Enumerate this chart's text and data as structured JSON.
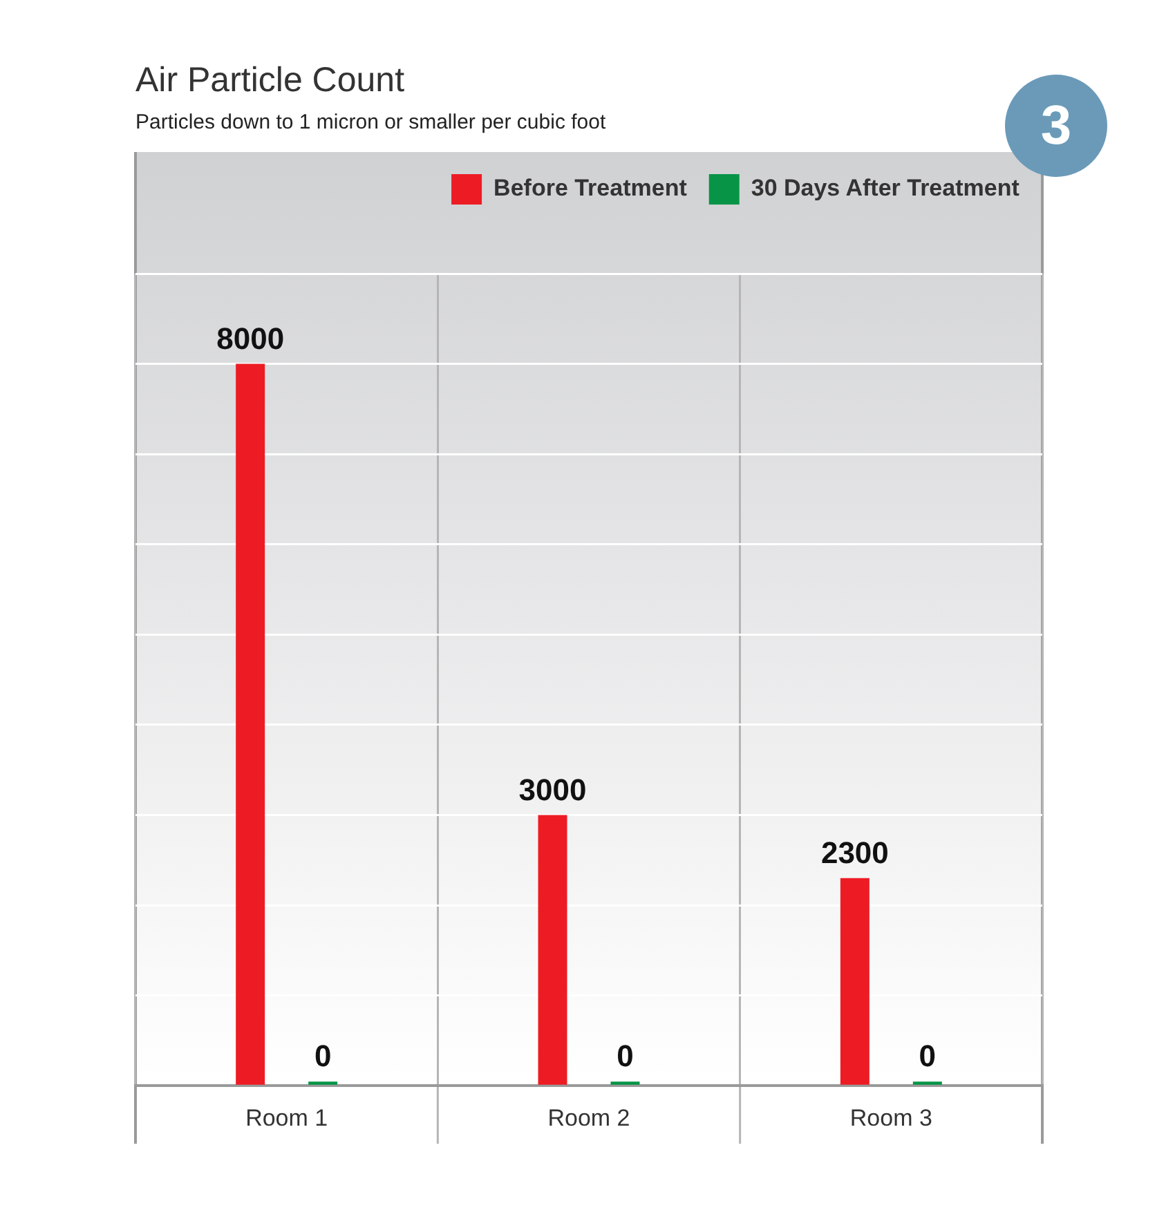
{
  "chart_data": {
    "type": "bar",
    "title": "Air Particle Count",
    "subtitle": "Particles down to 1 micron or smaller per cubic foot",
    "categories": [
      "Room 1",
      "Room 2",
      "Room 3"
    ],
    "series": [
      {
        "name": "Before Treatment",
        "color": "#ed1c24",
        "values": [
          8000,
          3000,
          2300
        ]
      },
      {
        "name": "30 Days After Treatment",
        "color": "#079447",
        "values": [
          0,
          0,
          0
        ]
      }
    ],
    "ylim": [
      0,
      9000
    ],
    "yticks": [
      {
        "value": 0,
        "label": null
      },
      {
        "value": 1000,
        "label": null
      },
      {
        "value": 2000,
        "label": null
      },
      {
        "value": 3000,
        "label": null
      },
      {
        "value": 4000,
        "label": null
      },
      {
        "value": 5000,
        "label": null
      },
      {
        "value": 6000,
        "label": null
      },
      {
        "value": 7000,
        "label": null
      },
      {
        "value": 8000,
        "label": null
      },
      {
        "value": 9000,
        "label": null
      }
    ],
    "tick_labels": "x",
    "grid": true,
    "legend": "top right",
    "data_labels": true,
    "annotations": [
      "3"
    ]
  }
}
